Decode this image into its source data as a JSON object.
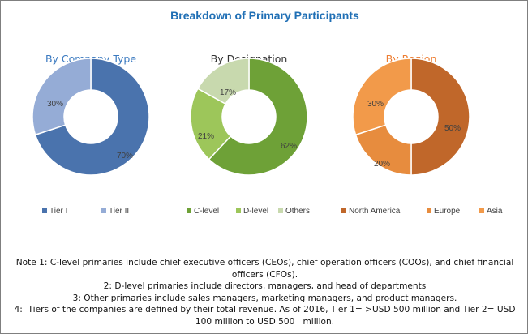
{
  "title": "Breakdown of Primary Participants",
  "colors": {
    "title": "#1f6fb5",
    "company": "#3b7ac0",
    "designation": "#333333",
    "region": "#ed7d31"
  },
  "chart_data": [
    {
      "type": "pie",
      "title": "By Company Type",
      "categories": [
        "Tier I",
        "Tier II"
      ],
      "values": [
        70,
        30
      ],
      "labels": [
        "70%",
        "30%"
      ],
      "colors": [
        "#4a73ad",
        "#95acd6"
      ],
      "legend_position": "bottom"
    },
    {
      "type": "pie",
      "title": "By Designation",
      "categories": [
        "C-level",
        "D-level",
        "Others"
      ],
      "values": [
        62,
        21,
        17
      ],
      "labels": [
        "62%",
        "21%",
        "17%"
      ],
      "colors": [
        "#6ea137",
        "#9dc65a",
        "#c8d9ae"
      ],
      "legend_position": "bottom"
    },
    {
      "type": "pie",
      "title": "By Region",
      "categories": [
        "North America",
        "Europe",
        "Asia"
      ],
      "values": [
        50,
        20,
        30
      ],
      "labels": [
        "50%",
        "20%",
        "30%"
      ],
      "colors": [
        "#c0672a",
        "#e78c3e",
        "#f29a4a"
      ],
      "legend_position": "bottom"
    }
  ],
  "notes": [
    "Note 1: C-level primaries include chief executive officers (CEOs), chief operation officers (COOs), and chief financial",
    "officers (CFOs).",
    "2: D-level primaries include directors, managers, and head of departments",
    "3: Other primaries include sales managers, marketing managers, and product managers.",
    "4:  Tiers of the companies are defined by their total revenue. As of 2016, Tier 1= >USD 500 million and Tier 2= USD",
    "100 million to USD 500   million."
  ]
}
